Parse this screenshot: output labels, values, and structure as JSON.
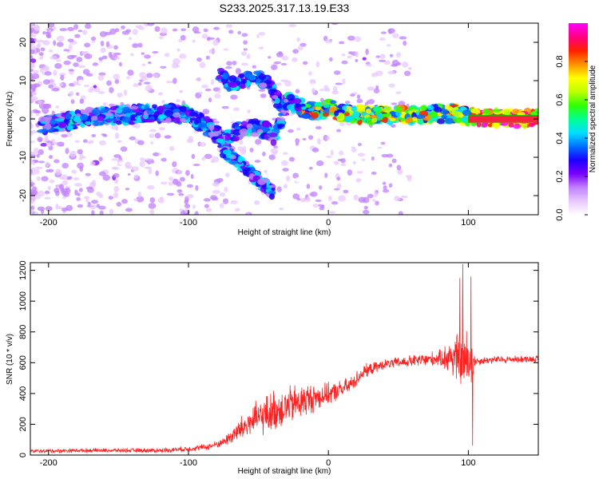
{
  "title": "S233.2025.317.13.19.E33",
  "chart_data": [
    {
      "type": "heatmap",
      "name": "spectrogram",
      "xlabel": "Height of straight line (km)",
      "ylabel": "Frequency (Hz)",
      "xlim": [
        -213,
        150
      ],
      "ylim": [
        -25,
        25
      ],
      "xticks": [
        -200,
        -100,
        0,
        100
      ],
      "yticks": [
        -20,
        -10,
        0,
        10,
        20
      ],
      "colorbar": {
        "label": "Normalized spectral amplitude",
        "range": [
          0,
          1
        ],
        "ticks": [
          0.0,
          0.2,
          0.4,
          0.6,
          0.8
        ],
        "colors": [
          "#ffffff",
          "#e8c8ff",
          "#c080ff",
          "#7a00ff",
          "#1a00ff",
          "#0070ff",
          "#00e0ff",
          "#00ff90",
          "#30ff00",
          "#c0ff00",
          "#ffff00",
          "#ff9000",
          "#ff2000",
          "#ff0080",
          "#ff00ff"
        ]
      },
      "features": [
        {
          "label": "main band",
          "x": [
            -205,
            -190,
            -170,
            -150,
            -130,
            -110,
            -100,
            -90,
            -80,
            -75,
            -65,
            -55,
            -45,
            -38,
            -30,
            -20,
            -10,
            0,
            10,
            30,
            60,
            90,
            100,
            150
          ],
          "y": [
            -1.5,
            -1,
            0.5,
            1,
            1.5,
            1.5,
            1,
            -1,
            -4,
            -6,
            -3,
            -2,
            -3,
            -5,
            5,
            3,
            2,
            3,
            1.5,
            1,
            1,
            1.5,
            0.5,
            0
          ]
        },
        {
          "label": "upper branch",
          "x": [
            -78,
            -70,
            -50,
            -40,
            -35
          ],
          "y": [
            12,
            9,
            11,
            8,
            4
          ]
        },
        {
          "label": "lower streak",
          "x": [
            -75,
            -40
          ],
          "y": [
            -8,
            -19
          ]
        }
      ]
    },
    {
      "type": "line",
      "name": "snr",
      "xlabel": "Height of straight line (km)",
      "ylabel": "SNR (10 * v/v)",
      "xlim": [
        -213,
        150
      ],
      "ylim": [
        0,
        1250
      ],
      "xticks": [
        -200,
        -100,
        0,
        100
      ],
      "yticks": [
        0,
        200,
        400,
        600,
        800,
        1000,
        1200
      ],
      "color": "#ff2020",
      "trend": {
        "x": [
          -213,
          -180,
          -150,
          -120,
          -100,
          -85,
          -75,
          -65,
          -55,
          -45,
          -35,
          -25,
          -15,
          -5,
          5,
          15,
          25,
          40,
          60,
          80,
          90,
          100,
          105,
          120,
          150
        ],
        "y": [
          25,
          30,
          30,
          30,
          40,
          55,
          85,
          150,
          220,
          260,
          300,
          330,
          360,
          385,
          410,
          450,
          540,
          590,
          610,
          630,
          640,
          600,
          610,
          620,
          625
        ]
      },
      "noise": {
        "x": [
          -213,
          -150,
          -100,
          -75,
          -65,
          -40,
          -20,
          0,
          20,
          40,
          80,
          88,
          95,
          98,
          102,
          105,
          150
        ],
        "amplitude": [
          15,
          15,
          20,
          30,
          90,
          160,
          140,
          80,
          60,
          35,
          60,
          160,
          220,
          260,
          200,
          30,
          25
        ]
      },
      "spikes": [
        {
          "x": 96,
          "y": 1240
        },
        {
          "x": 94,
          "y": 1150
        },
        {
          "x": 102,
          "y": 1160
        },
        {
          "x": 103,
          "y": 60
        }
      ]
    }
  ]
}
